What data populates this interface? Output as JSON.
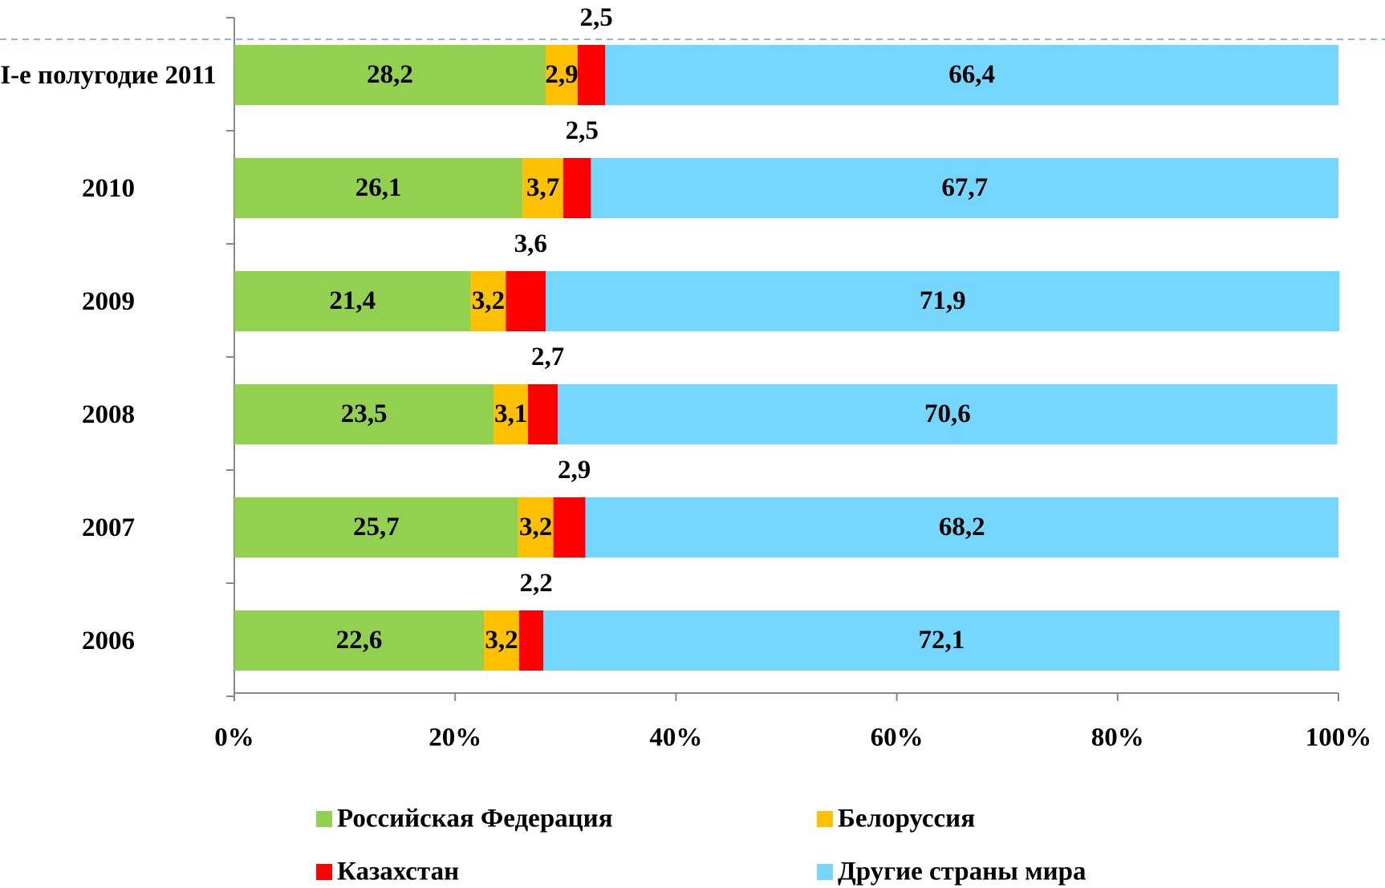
{
  "chart_data": {
    "type": "stacked_barh",
    "categories": [
      "I-е полугодие 2011",
      "2010",
      "2009",
      "2008",
      "2007",
      "2006"
    ],
    "series": [
      {
        "name": "Российская Федерация",
        "color": "#92d050",
        "values": [
          28.2,
          26.1,
          21.4,
          23.5,
          25.7,
          22.6
        ],
        "value_labels": [
          "28,2",
          "26,1",
          "21,4",
          "23,5",
          "25,7",
          "22,6"
        ]
      },
      {
        "name": "Белоруссия",
        "color": "#ffc000",
        "values": [
          2.9,
          3.7,
          3.2,
          3.1,
          3.2,
          3.2
        ],
        "value_labels": [
          "2,9",
          "3,7",
          "3,2",
          "3,1",
          "3,2",
          "3,2"
        ]
      },
      {
        "name": "Казахстан",
        "color": "#ff0000",
        "values": [
          2.5,
          2.5,
          3.6,
          2.7,
          2.9,
          2.2
        ],
        "value_labels": [
          "2,5",
          "2,5",
          "3,6",
          "2,7",
          "2,9",
          "2,2"
        ]
      },
      {
        "name": "Другие страны мира",
        "color": "#75d7ff",
        "values": [
          66.4,
          67.7,
          71.9,
          70.6,
          68.2,
          72.1
        ],
        "value_labels": [
          "66,4",
          "67,7",
          "71,9",
          "70,6",
          "68,2",
          "72,1"
        ]
      }
    ],
    "xlim": [
      0,
      100
    ],
    "xticks": [
      {
        "value": 0,
        "label": "0%"
      },
      {
        "value": 20,
        "label": "20%"
      },
      {
        "value": 40,
        "label": "40%"
      },
      {
        "value": 60,
        "label": "60%"
      },
      {
        "value": 80,
        "label": "80%"
      },
      {
        "value": 100,
        "label": "100%"
      }
    ],
    "legend": "bottom"
  }
}
